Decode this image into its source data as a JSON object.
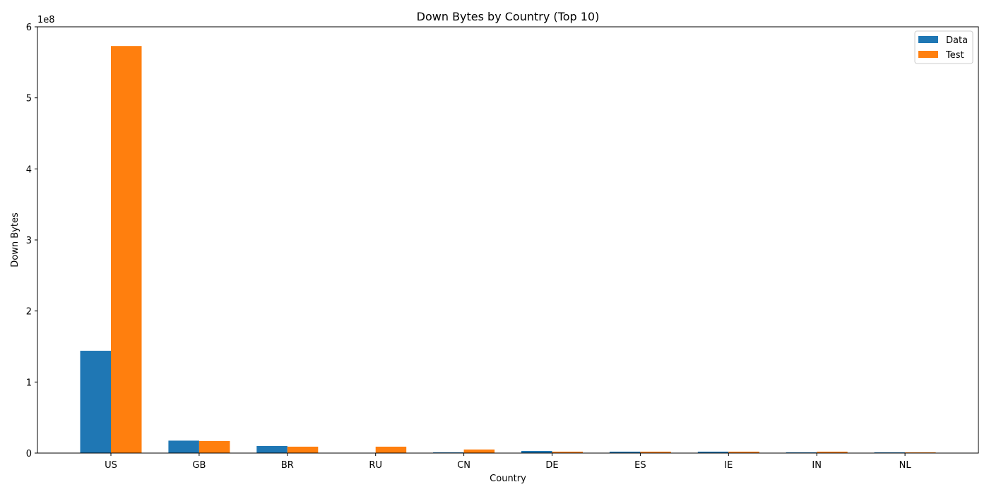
{
  "chart_data": {
    "type": "bar",
    "title": "Down Bytes by Country (Top 10)",
    "xlabel": "Country",
    "ylabel": "Down Bytes",
    "offset_label": "1e8",
    "categories": [
      "US",
      "GB",
      "BR",
      "RU",
      "CN",
      "DE",
      "ES",
      "IE",
      "IN",
      "NL"
    ],
    "series": [
      {
        "name": "Data",
        "color": "#1f77b4",
        "values": [
          144000000,
          17500000,
          10000000,
          0,
          1000000,
          3000000,
          2000000,
          2000000,
          1000000,
          1000000
        ]
      },
      {
        "name": "Test",
        "color": "#ff7f0e",
        "values": [
          573000000,
          17000000,
          9000000,
          9000000,
          5000000,
          2000000,
          2000000,
          2000000,
          2000000,
          1000000
        ]
      }
    ],
    "ylim": [
      0,
      600000000
    ],
    "yticks": [
      0,
      100000000,
      200000000,
      300000000,
      400000000,
      500000000,
      600000000
    ],
    "ytick_labels": [
      "0",
      "1",
      "2",
      "3",
      "4",
      "5",
      "6"
    ],
    "legend": "top-right",
    "grid": false
  }
}
